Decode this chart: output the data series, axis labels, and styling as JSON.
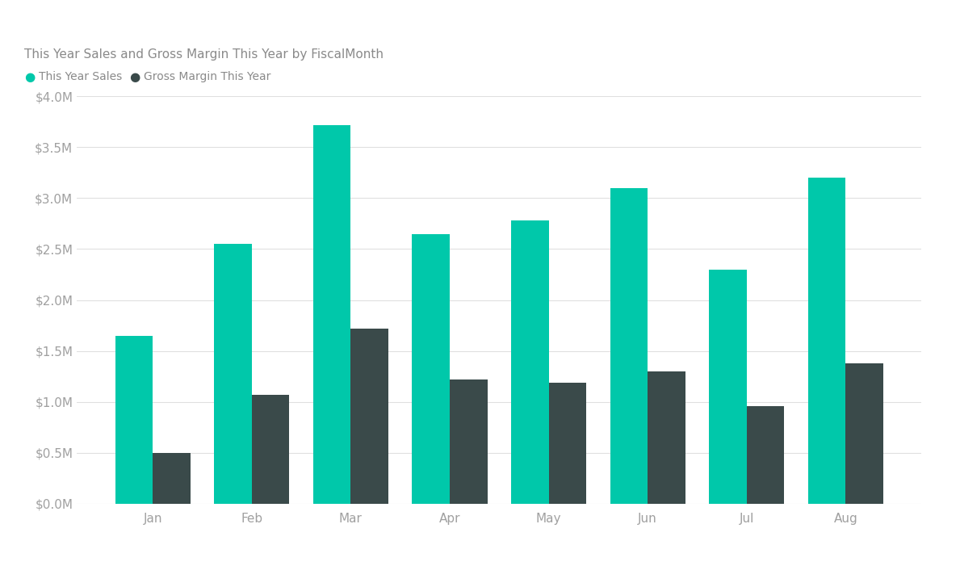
{
  "title": "This Year Sales and Gross Margin This Year by FiscalMonth",
  "legend_labels": [
    "This Year Sales",
    "Gross Margin This Year"
  ],
  "months": [
    "Jan",
    "Feb",
    "Mar",
    "Apr",
    "May",
    "Jun",
    "Jul",
    "Aug"
  ],
  "this_year_sales": [
    1650000,
    2550000,
    3720000,
    2650000,
    2780000,
    3100000,
    2300000,
    3200000
  ],
  "gross_margin": [
    500000,
    1070000,
    1720000,
    1220000,
    1190000,
    1300000,
    960000,
    1380000
  ],
  "sales_color": "#00C8AA",
  "margin_color": "#3A4A4A",
  "background_color": "#FFFFFF",
  "header_color": "#F2F2F2",
  "grid_color": "#E0E0E0",
  "title_color": "#8A8A8A",
  "legend_color": "#8A8A8A",
  "tick_color": "#A0A0A0",
  "ylim": [
    0,
    4000000
  ],
  "yticks": [
    0,
    500000,
    1000000,
    1500000,
    2000000,
    2500000,
    3000000,
    3500000,
    4000000
  ]
}
